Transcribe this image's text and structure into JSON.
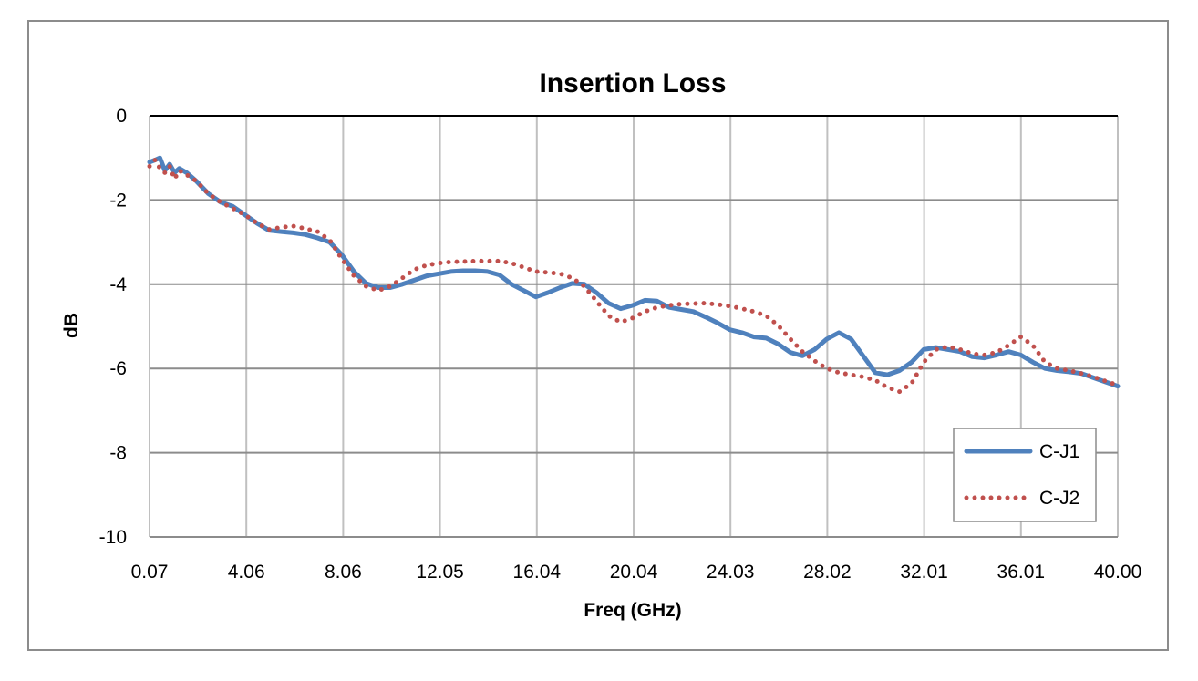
{
  "chart_data": {
    "type": "line",
    "title": "Insertion Loss",
    "xlabel": "Freq (GHz)",
    "ylabel": "dB",
    "xlim": [
      0.07,
      40.0
    ],
    "ylim": [
      -10,
      0
    ],
    "x_tick_labels": [
      "0.07",
      "4.06",
      "8.06",
      "12.05",
      "16.04",
      "20.04",
      "24.03",
      "28.02",
      "32.01",
      "36.01",
      "40.00"
    ],
    "y_tick_labels": [
      "0",
      "-2",
      "-4",
      "-6",
      "-8",
      "-10"
    ],
    "grid": true,
    "legend_position": "bottom-right",
    "series": [
      {
        "name": "C-J1",
        "color": "#4f81bd",
        "style": "solid",
        "points": [
          [
            0.07,
            -1.1
          ],
          [
            0.3,
            -1.05
          ],
          [
            0.5,
            -1.0
          ],
          [
            0.7,
            -1.3
          ],
          [
            0.9,
            -1.15
          ],
          [
            1.1,
            -1.35
          ],
          [
            1.3,
            -1.25
          ],
          [
            1.6,
            -1.35
          ],
          [
            2.0,
            -1.55
          ],
          [
            2.5,
            -1.85
          ],
          [
            3.0,
            -2.05
          ],
          [
            3.5,
            -2.15
          ],
          [
            4.0,
            -2.35
          ],
          [
            4.5,
            -2.55
          ],
          [
            5.0,
            -2.72
          ],
          [
            5.5,
            -2.75
          ],
          [
            6.0,
            -2.78
          ],
          [
            6.5,
            -2.82
          ],
          [
            7.0,
            -2.9
          ],
          [
            7.5,
            -3.0
          ],
          [
            8.0,
            -3.3
          ],
          [
            8.5,
            -3.7
          ],
          [
            9.0,
            -3.98
          ],
          [
            9.5,
            -4.08
          ],
          [
            10.0,
            -4.08
          ],
          [
            10.5,
            -4.0
          ],
          [
            11.0,
            -3.9
          ],
          [
            11.5,
            -3.8
          ],
          [
            12.0,
            -3.75
          ],
          [
            12.5,
            -3.7
          ],
          [
            13.0,
            -3.68
          ],
          [
            13.5,
            -3.68
          ],
          [
            14.0,
            -3.7
          ],
          [
            14.5,
            -3.78
          ],
          [
            15.0,
            -4.0
          ],
          [
            15.5,
            -4.15
          ],
          [
            16.0,
            -4.3
          ],
          [
            16.5,
            -4.2
          ],
          [
            17.0,
            -4.08
          ],
          [
            17.5,
            -3.98
          ],
          [
            18.0,
            -4.0
          ],
          [
            18.5,
            -4.2
          ],
          [
            19.0,
            -4.45
          ],
          [
            19.5,
            -4.58
          ],
          [
            20.0,
            -4.5
          ],
          [
            20.5,
            -4.38
          ],
          [
            21.0,
            -4.4
          ],
          [
            21.5,
            -4.55
          ],
          [
            22.0,
            -4.6
          ],
          [
            22.5,
            -4.65
          ],
          [
            23.0,
            -4.78
          ],
          [
            23.5,
            -4.92
          ],
          [
            24.0,
            -5.08
          ],
          [
            24.5,
            -5.15
          ],
          [
            25.0,
            -5.25
          ],
          [
            25.5,
            -5.28
          ],
          [
            26.0,
            -5.42
          ],
          [
            26.5,
            -5.62
          ],
          [
            27.0,
            -5.7
          ],
          [
            27.5,
            -5.55
          ],
          [
            28.0,
            -5.3
          ],
          [
            28.5,
            -5.15
          ],
          [
            29.0,
            -5.3
          ],
          [
            29.5,
            -5.7
          ],
          [
            30.0,
            -6.1
          ],
          [
            30.5,
            -6.15
          ],
          [
            31.0,
            -6.05
          ],
          [
            31.5,
            -5.85
          ],
          [
            32.0,
            -5.55
          ],
          [
            32.5,
            -5.5
          ],
          [
            33.0,
            -5.55
          ],
          [
            33.5,
            -5.6
          ],
          [
            34.0,
            -5.72
          ],
          [
            34.5,
            -5.75
          ],
          [
            35.0,
            -5.68
          ],
          [
            35.5,
            -5.6
          ],
          [
            36.0,
            -5.68
          ],
          [
            36.5,
            -5.85
          ],
          [
            37.0,
            -6.0
          ],
          [
            37.5,
            -6.05
          ],
          [
            38.0,
            -6.08
          ],
          [
            38.5,
            -6.12
          ],
          [
            39.0,
            -6.22
          ],
          [
            39.5,
            -6.32
          ],
          [
            40.0,
            -6.42
          ]
        ]
      },
      {
        "name": "C-J2",
        "color": "#c0504d",
        "style": "dotted",
        "points": [
          [
            0.07,
            -1.2
          ],
          [
            0.3,
            -1.05
          ],
          [
            0.5,
            -1.25
          ],
          [
            0.7,
            -1.35
          ],
          [
            0.9,
            -1.2
          ],
          [
            1.1,
            -1.5
          ],
          [
            1.3,
            -1.3
          ],
          [
            1.6,
            -1.4
          ],
          [
            2.0,
            -1.55
          ],
          [
            2.5,
            -1.85
          ],
          [
            3.0,
            -2.05
          ],
          [
            3.5,
            -2.2
          ],
          [
            4.0,
            -2.35
          ],
          [
            4.5,
            -2.55
          ],
          [
            5.0,
            -2.7
          ],
          [
            5.5,
            -2.65
          ],
          [
            6.0,
            -2.62
          ],
          [
            6.5,
            -2.68
          ],
          [
            7.0,
            -2.75
          ],
          [
            7.5,
            -2.95
          ],
          [
            8.0,
            -3.4
          ],
          [
            8.5,
            -3.8
          ],
          [
            9.0,
            -4.05
          ],
          [
            9.5,
            -4.15
          ],
          [
            10.0,
            -4.05
          ],
          [
            10.5,
            -3.85
          ],
          [
            11.0,
            -3.65
          ],
          [
            11.5,
            -3.55
          ],
          [
            12.0,
            -3.5
          ],
          [
            12.5,
            -3.47
          ],
          [
            13.0,
            -3.46
          ],
          [
            13.5,
            -3.45
          ],
          [
            14.0,
            -3.45
          ],
          [
            14.5,
            -3.45
          ],
          [
            15.0,
            -3.5
          ],
          [
            15.5,
            -3.6
          ],
          [
            16.0,
            -3.7
          ],
          [
            16.5,
            -3.72
          ],
          [
            17.0,
            -3.75
          ],
          [
            17.5,
            -3.85
          ],
          [
            18.0,
            -4.05
          ],
          [
            18.5,
            -4.4
          ],
          [
            19.0,
            -4.75
          ],
          [
            19.5,
            -4.9
          ],
          [
            20.0,
            -4.8
          ],
          [
            20.5,
            -4.65
          ],
          [
            21.0,
            -4.55
          ],
          [
            21.5,
            -4.5
          ],
          [
            22.0,
            -4.47
          ],
          [
            22.5,
            -4.46
          ],
          [
            23.0,
            -4.45
          ],
          [
            23.5,
            -4.48
          ],
          [
            24.0,
            -4.52
          ],
          [
            24.5,
            -4.58
          ],
          [
            25.0,
            -4.65
          ],
          [
            25.5,
            -4.75
          ],
          [
            26.0,
            -4.98
          ],
          [
            26.5,
            -5.3
          ],
          [
            27.0,
            -5.6
          ],
          [
            27.5,
            -5.82
          ],
          [
            28.0,
            -6.0
          ],
          [
            28.5,
            -6.1
          ],
          [
            29.0,
            -6.15
          ],
          [
            29.5,
            -6.2
          ],
          [
            30.0,
            -6.28
          ],
          [
            30.5,
            -6.45
          ],
          [
            31.0,
            -6.55
          ],
          [
            31.5,
            -6.35
          ],
          [
            32.0,
            -5.85
          ],
          [
            32.5,
            -5.55
          ],
          [
            33.0,
            -5.48
          ],
          [
            33.5,
            -5.55
          ],
          [
            34.0,
            -5.65
          ],
          [
            34.5,
            -5.68
          ],
          [
            35.0,
            -5.62
          ],
          [
            35.5,
            -5.45
          ],
          [
            36.0,
            -5.25
          ],
          [
            36.5,
            -5.45
          ],
          [
            37.0,
            -5.85
          ],
          [
            37.5,
            -6.0
          ],
          [
            38.0,
            -6.05
          ],
          [
            38.5,
            -6.12
          ],
          [
            39.0,
            -6.2
          ],
          [
            39.5,
            -6.3
          ],
          [
            40.0,
            -6.4
          ]
        ]
      }
    ]
  }
}
